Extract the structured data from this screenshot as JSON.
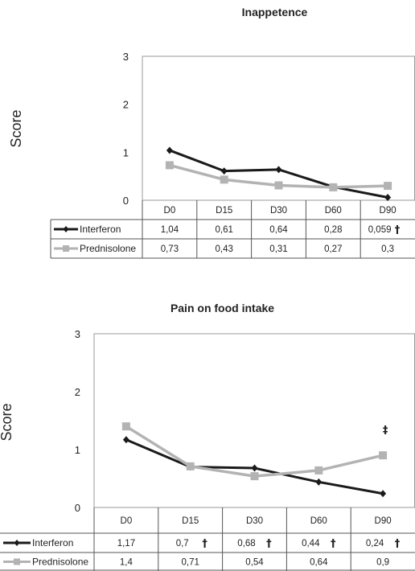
{
  "chart_data": [
    {
      "type": "line",
      "title": "Inappetence",
      "ylabel": "Score",
      "ylim": [
        0,
        3
      ],
      "yticks": [
        "0",
        "1",
        "2",
        "3"
      ],
      "categories": [
        "D0",
        "D15",
        "D30",
        "D60",
        "D90"
      ],
      "grid": false,
      "legend": "data table left",
      "series": [
        {
          "name": "Interferon",
          "values": [
            1.04,
            0.61,
            0.64,
            0.28,
            0.059
          ],
          "labels": [
            "1,04",
            "0,61",
            "0,64",
            "0,28",
            "0,059"
          ],
          "marks": [
            "",
            "",
            "",
            "",
            "†"
          ],
          "color": "#1a1a1a",
          "marker": "diamond"
        },
        {
          "name": "Prednisolone",
          "values": [
            0.73,
            0.43,
            0.31,
            0.27,
            0.3
          ],
          "labels": [
            "0,73",
            "0,43",
            "0,31",
            "0,27",
            "0,3"
          ],
          "marks": [
            "",
            "",
            "",
            "",
            ""
          ],
          "color": "#b3b3b3",
          "marker": "square"
        }
      ],
      "annotations": []
    },
    {
      "type": "line",
      "title": "Pain on food intake",
      "ylabel": "Score",
      "ylim": [
        0,
        3
      ],
      "yticks": [
        "0",
        "1",
        "2",
        "3"
      ],
      "categories": [
        "D0",
        "D15",
        "D30",
        "D60",
        "D90"
      ],
      "grid": false,
      "legend": "data table left",
      "series": [
        {
          "name": "Interferon",
          "values": [
            1.17,
            0.7,
            0.68,
            0.44,
            0.24
          ],
          "labels": [
            "1,17",
            "0,7",
            "0,68",
            "0,44",
            "0,24"
          ],
          "marks": [
            "",
            "†",
            "†",
            "†",
            "†"
          ],
          "color": "#1a1a1a",
          "marker": "diamond"
        },
        {
          "name": "Prednisolone",
          "values": [
            1.4,
            0.71,
            0.54,
            0.64,
            0.9
          ],
          "labels": [
            "1,4",
            "0,71",
            "0,54",
            "0,64",
            "0,9"
          ],
          "marks": [
            "",
            "",
            "",
            "",
            ""
          ],
          "color": "#b3b3b3",
          "marker": "square"
        }
      ],
      "annotations": [
        {
          "text": "‡",
          "category": "D90",
          "value": 1.35
        }
      ]
    }
  ]
}
